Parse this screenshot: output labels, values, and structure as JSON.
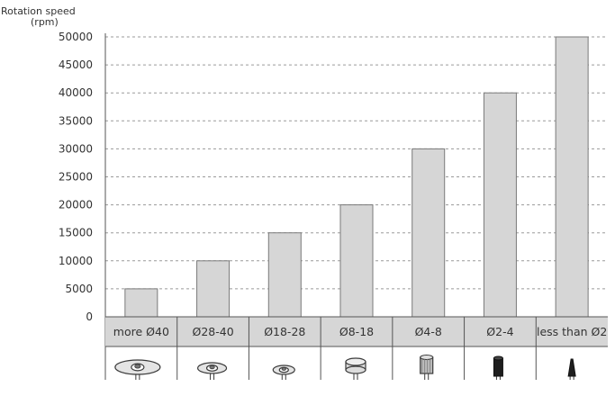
{
  "chart_data": {
    "type": "bar",
    "title": "",
    "xlabel": "",
    "ylabel": "Rotation speed",
    "ylabel_unit": "(rpm)",
    "categories": [
      "more Ø40",
      "Ø28-40",
      "Ø18-28",
      "Ø8-18",
      "Ø4-8",
      "Ø2-4",
      "less than Ø2"
    ],
    "values": [
      5000,
      10000,
      15000,
      20000,
      30000,
      40000,
      50000
    ],
    "ylim": [
      0,
      50000
    ],
    "yticks": [
      0,
      5000,
      10000,
      15000,
      20000,
      25000,
      30000,
      35000,
      40000,
      45000,
      50000
    ],
    "ytick_labels": [
      "0",
      "5000",
      "10000",
      "15000",
      "20000",
      "25000",
      "30000",
      "35000",
      "40000",
      "45000",
      "50000"
    ],
    "grid": "horizontal-dashed",
    "legend": "none",
    "category_icons": [
      "large-disc-tool-icon",
      "medium-disc-tool-icon",
      "small-disc-tool-icon",
      "wheel-tool-icon",
      "cylinder-burr-icon",
      "slim-burr-icon",
      "tapered-point-icon"
    ]
  },
  "colors": {
    "bar_fill": "#d6d6d6",
    "bar_stroke": "#7a7a7a",
    "grid": "#9a9a9a",
    "axis": "#555555",
    "header_fill": "#d6d6d6",
    "text": "#333333"
  }
}
